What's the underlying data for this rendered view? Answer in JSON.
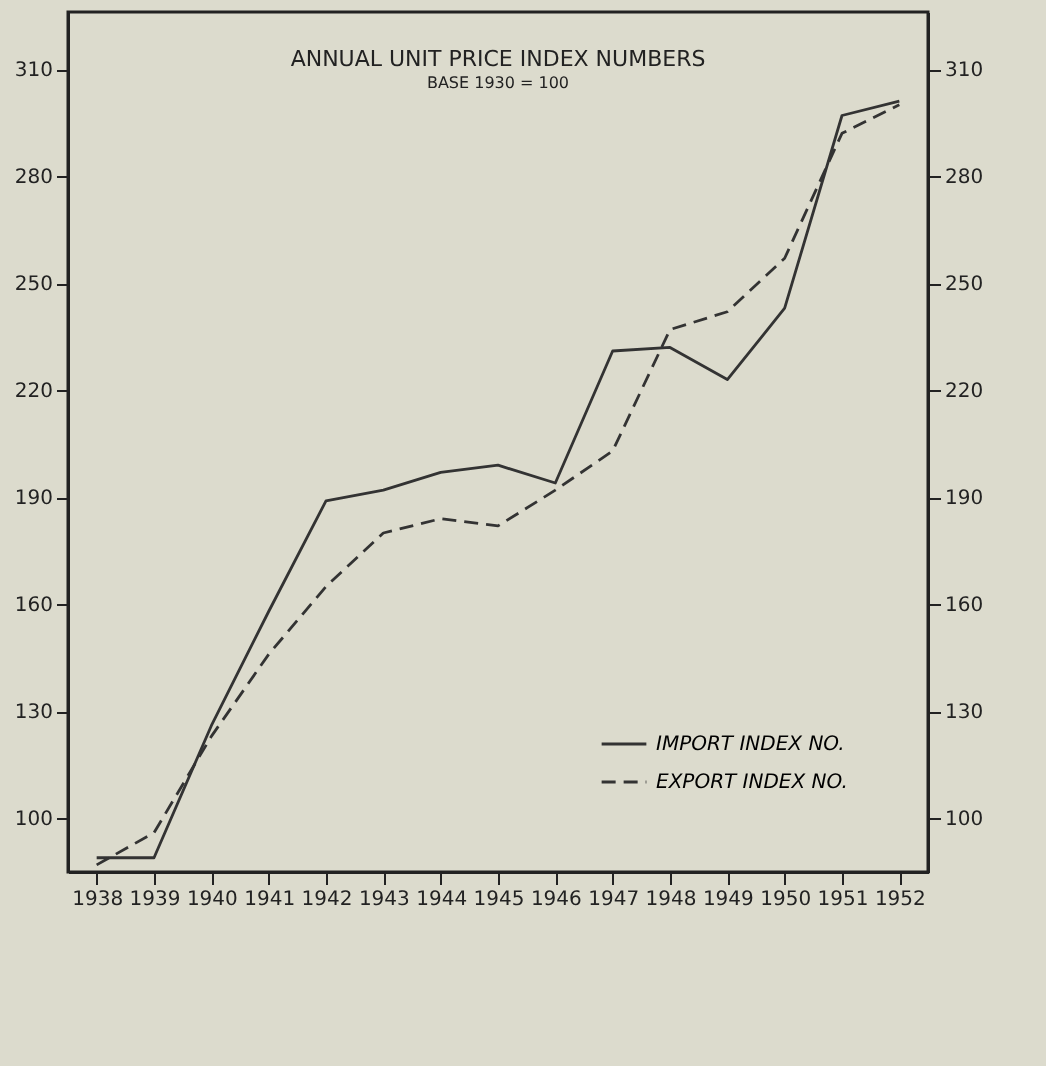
{
  "chart_data": {
    "type": "line",
    "title": "ANNUAL UNIT PRICE INDEX NUMBERS",
    "subtitle": "BASE 1930 = 100",
    "categories": [
      "1938",
      "1939",
      "1940",
      "1941",
      "1942",
      "1943",
      "1944",
      "1945",
      "1946",
      "1947",
      "1948",
      "1949",
      "1950",
      "1951",
      "1952"
    ],
    "series": [
      {
        "name": "IMPORT INDEX NO.",
        "color": "#333333",
        "line_style": "solid",
        "values": [
          89,
          89,
          126,
          158,
          189,
          192,
          197,
          199,
          194,
          231,
          232,
          223,
          243,
          297,
          301
        ]
      },
      {
        "name": "EXPORT INDEX NO.",
        "color": "#333333",
        "line_style": "dashed",
        "values": [
          87,
          96,
          123,
          146,
          165,
          180,
          184,
          182,
          192,
          203,
          237,
          242,
          257,
          292,
          300
        ]
      }
    ],
    "ylim": [
      85,
      326
    ],
    "yticks": [
      100,
      130,
      160,
      190,
      220,
      250,
      280,
      310
    ],
    "y2lim": [
      85,
      326
    ],
    "y2ticks": [
      100,
      130,
      160,
      190,
      220,
      250,
      280,
      310
    ],
    "legend": "bottom right",
    "grid": false,
    "marker": "none"
  }
}
